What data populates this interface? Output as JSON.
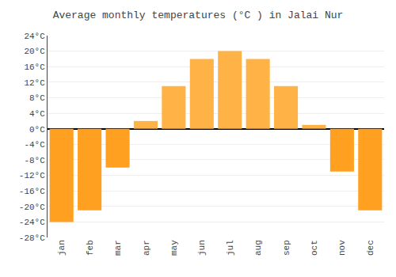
{
  "chart_data": {
    "type": "bar",
    "title": "Average monthly temperatures (°C ) in Jalai Nur",
    "categories": [
      "jan",
      "feb",
      "mar",
      "apr",
      "may",
      "jun",
      "jul",
      "aug",
      "sep",
      "oct",
      "nov",
      "dec"
    ],
    "values": [
      -24,
      -21,
      -10,
      2,
      11,
      18,
      20,
      18,
      11,
      1,
      -11,
      -21
    ],
    "colors": [
      "#FFA020",
      "#FFA020",
      "#FFA020",
      "#FFB347",
      "#FFB347",
      "#FFB347",
      "#FFB347",
      "#FFB347",
      "#FFB347",
      "#FFB347",
      "#FFA020",
      "#FFA020"
    ],
    "ylim": [
      -28,
      24
    ],
    "yticks": [
      {
        "value": -28,
        "label": "-28°C"
      },
      {
        "value": -24,
        "label": "-24°C"
      },
      {
        "value": -20,
        "label": "-20°C"
      },
      {
        "value": -16,
        "label": "-16°C"
      },
      {
        "value": -12,
        "label": "-12°C"
      },
      {
        "value": -8,
        "label": "-8°C"
      },
      {
        "value": -4,
        "label": "-4°C"
      },
      {
        "value": 0,
        "label": "0°C"
      },
      {
        "value": 4,
        "label": "4°C"
      },
      {
        "value": 8,
        "label": "8°C"
      },
      {
        "value": 12,
        "label": "12°C"
      },
      {
        "value": 16,
        "label": "16°C"
      },
      {
        "value": 20,
        "label": "20°C"
      },
      {
        "value": 24,
        "label": "24°C"
      }
    ],
    "grid": true
  }
}
